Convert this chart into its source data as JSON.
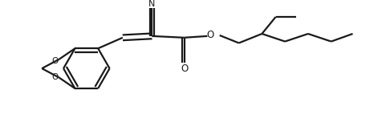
{
  "background_color": "#ffffff",
  "line_color": "#1a1a1a",
  "line_width": 1.6,
  "figsize": [
    4.86,
    1.58
  ],
  "dpi": 100,
  "atoms": {
    "N_label": "N",
    "O_carbonyl_label": "O",
    "O_ester_label": "O"
  }
}
